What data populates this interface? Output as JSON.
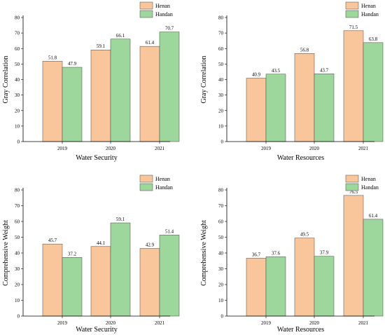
{
  "chart_data": [
    {
      "type": "bar",
      "categories": [
        "2019",
        "2020",
        "2021"
      ],
      "series": [
        {
          "name": "Henan",
          "values": [
            51.8,
            59.1,
            61.4
          ]
        },
        {
          "name": "Handan",
          "values": [
            47.9,
            66.1,
            70.7
          ]
        }
      ],
      "xlabel": "Water Security",
      "ylabel": "Gray Correlation",
      "ylim": [
        0,
        80
      ],
      "yticks": [
        0,
        10,
        20,
        30,
        40,
        50,
        60,
        70,
        80
      ],
      "legend": "top-right",
      "grid": false
    },
    {
      "type": "bar",
      "categories": [
        "2019",
        "2020",
        "2021"
      ],
      "series": [
        {
          "name": "Henan",
          "values": [
            40.9,
            56.8,
            71.5
          ]
        },
        {
          "name": "Handan",
          "values": [
            43.5,
            43.7,
            63.8
          ]
        }
      ],
      "xlabel": "Water Resources",
      "ylabel": "Gray Correlation",
      "ylim": [
        0,
        80
      ],
      "yticks": [
        0,
        10,
        20,
        30,
        40,
        50,
        60,
        70,
        80
      ],
      "legend": "top-right",
      "grid": false
    },
    {
      "type": "bar",
      "categories": [
        "2019",
        "2020",
        "2021"
      ],
      "series": [
        {
          "name": "Henan",
          "values": [
            45.7,
            44.1,
            42.9
          ]
        },
        {
          "name": "Handan",
          "values": [
            37.2,
            59.1,
            51.4
          ]
        }
      ],
      "xlabel": "Water Security",
      "ylabel": "Comprehensive Weight",
      "ylim": [
        0,
        80
      ],
      "yticks": [
        0,
        10,
        20,
        30,
        40,
        50,
        60,
        70,
        80
      ],
      "legend": "top-right",
      "grid": false
    },
    {
      "type": "bar",
      "categories": [
        "2019",
        "2020",
        "2021"
      ],
      "series": [
        {
          "name": "Henan",
          "values": [
            36.7,
            49.5,
            76.5
          ]
        },
        {
          "name": "Handan",
          "values": [
            37.6,
            37.9,
            61.4
          ]
        }
      ],
      "xlabel": "Water Resources",
      "ylabel": "Comprehensive Weight",
      "ylim": [
        0,
        80
      ],
      "yticks": [
        0,
        10,
        20,
        30,
        40,
        50,
        60,
        70,
        80
      ],
      "legend": "top-right",
      "grid": false
    }
  ],
  "colors": {
    "Henan": "#f9c69b",
    "Handan": "#9ed79b",
    "edge": "#444444"
  }
}
